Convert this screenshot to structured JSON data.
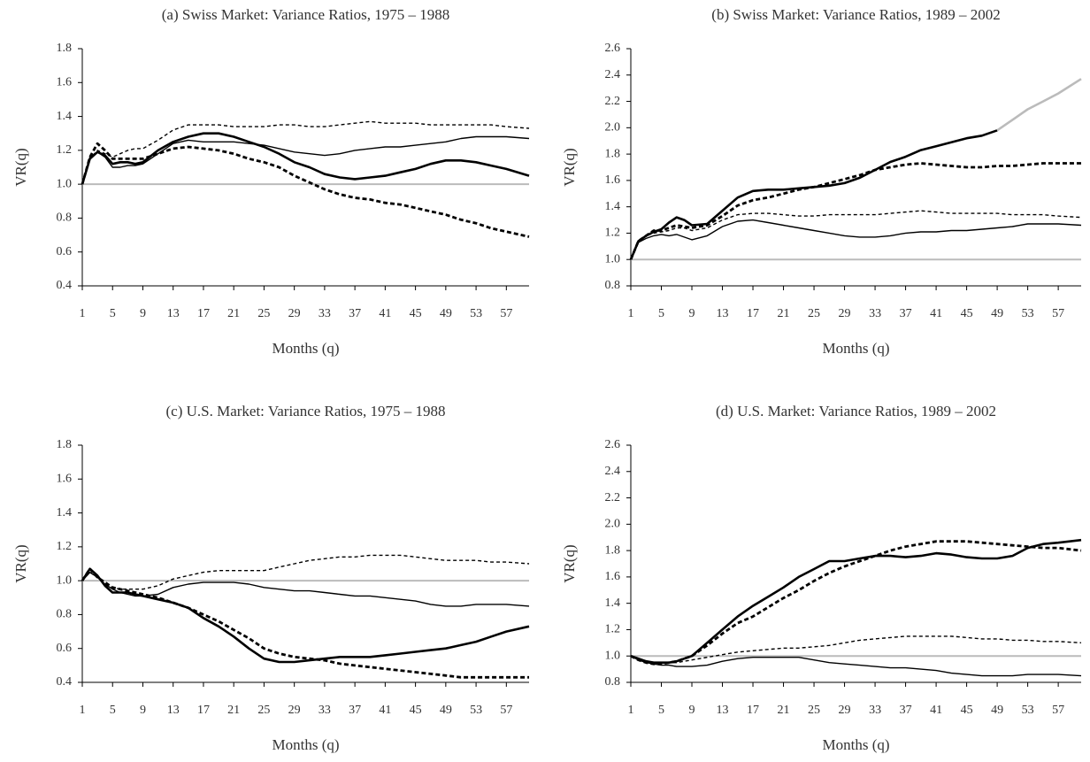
{
  "chart_data": [
    {
      "type": "line",
      "title": "(a) Swiss Market: Variance Ratios, 1975 – 1988",
      "xlabel": "Months (q)",
      "ylabel": "VR(q)",
      "x": [
        1,
        2,
        3,
        4,
        5,
        6,
        7,
        8,
        9,
        11,
        13,
        15,
        17,
        19,
        21,
        23,
        25,
        27,
        29,
        31,
        33,
        35,
        37,
        39,
        41,
        43,
        45,
        47,
        49,
        51,
        53,
        55,
        57,
        60
      ],
      "xlim": [
        1,
        60
      ],
      "xticks": [
        1,
        5,
        9,
        13,
        17,
        21,
        25,
        29,
        33,
        37,
        41,
        45,
        49,
        53,
        57
      ],
      "ylim": [
        0.4,
        1.8
      ],
      "yticks": [
        0.4,
        0.6,
        0.8,
        {
          "value": 1,
          "label": "1.0"
        },
        1.2,
        1.4,
        1.6,
        1.8
      ],
      "hline": 1,
      "hline_color": "#bbbbbb",
      "series": [
        {
          "color": "#000000",
          "line_width": 2.6,
          "line_style": "solid",
          "values": [
            1.0,
            1.15,
            1.19,
            1.17,
            1.12,
            1.13,
            1.13,
            1.12,
            1.13,
            1.2,
            1.25,
            1.28,
            1.3,
            1.3,
            1.28,
            1.25,
            1.22,
            1.18,
            1.13,
            1.1,
            1.06,
            1.04,
            1.03,
            1.04,
            1.05,
            1.07,
            1.09,
            1.12,
            1.14,
            1.14,
            1.13,
            1.11,
            1.09,
            1.05
          ]
        },
        {
          "color": "#000000",
          "line_width": 1.4,
          "line_style": "solid",
          "values": [
            1.0,
            1.16,
            1.19,
            1.16,
            1.1,
            1.1,
            1.11,
            1.11,
            1.12,
            1.18,
            1.24,
            1.26,
            1.25,
            1.25,
            1.25,
            1.24,
            1.23,
            1.21,
            1.19,
            1.18,
            1.17,
            1.18,
            1.2,
            1.21,
            1.22,
            1.22,
            1.23,
            1.24,
            1.25,
            1.27,
            1.28,
            1.28,
            1.28,
            1.27
          ]
        },
        {
          "color": "#000000",
          "line_width": 1.4,
          "line_style": "dashed",
          "values": [
            1.0,
            1.15,
            1.2,
            1.18,
            1.16,
            1.18,
            1.2,
            1.21,
            1.21,
            1.26,
            1.32,
            1.35,
            1.35,
            1.35,
            1.34,
            1.34,
            1.34,
            1.35,
            1.35,
            1.34,
            1.34,
            1.35,
            1.36,
            1.37,
            1.36,
            1.36,
            1.36,
            1.35,
            1.35,
            1.35,
            1.35,
            1.35,
            1.34,
            1.33
          ]
        },
        {
          "color": "#000000",
          "line_width": 2.8,
          "line_style": "dashed",
          "values": [
            1.0,
            1.16,
            1.24,
            1.2,
            1.15,
            1.15,
            1.15,
            1.15,
            1.15,
            1.18,
            1.21,
            1.22,
            1.21,
            1.2,
            1.18,
            1.15,
            1.13,
            1.1,
            1.05,
            1.01,
            0.97,
            0.94,
            0.92,
            0.91,
            0.89,
            0.88,
            0.86,
            0.84,
            0.82,
            0.79,
            0.77,
            0.74,
            0.72,
            0.69
          ]
        }
      ]
    },
    {
      "type": "line",
      "title": "(b) Swiss Market: Variance Ratios, 1989 – 2002",
      "xlabel": "Months (q)",
      "ylabel": "VR(q)",
      "x": [
        1,
        2,
        3,
        4,
        5,
        6,
        7,
        8,
        9,
        11,
        13,
        15,
        17,
        19,
        21,
        23,
        25,
        27,
        29,
        31,
        33,
        35,
        37,
        39,
        41,
        43,
        45,
        47,
        49,
        51,
        53,
        55,
        57,
        60
      ],
      "xlim": [
        1,
        60
      ],
      "xticks": [
        1,
        5,
        9,
        13,
        17,
        21,
        25,
        29,
        33,
        37,
        41,
        45,
        49,
        53,
        57
      ],
      "ylim": [
        0.8,
        2.6
      ],
      "yticks": [
        0.8,
        {
          "value": 1,
          "label": "1.0"
        },
        1.2,
        1.4,
        1.6,
        1.8,
        {
          "value": 2,
          "label": "2.0"
        },
        2.2,
        2.4,
        2.6
      ],
      "hline": 1,
      "hline_color": "#bbbbbb",
      "series": [
        {
          "color": "#000000",
          "line_width": 2.6,
          "line_style": "solid",
          "values": [
            1.0,
            1.14,
            1.18,
            1.21,
            1.23,
            1.28,
            1.32,
            1.3,
            1.26,
            1.27,
            1.37,
            1.47,
            1.52,
            1.53,
            1.53,
            1.54,
            1.55,
            1.56,
            1.58,
            1.62,
            1.68,
            1.74,
            1.78,
            1.83,
            1.86,
            1.89,
            1.92,
            1.94,
            1.98,
            null,
            null,
            null,
            null,
            null
          ]
        },
        {
          "color": "#bbbbbb",
          "line_width": 2.6,
          "line_style": "solid",
          "values": [
            null,
            null,
            null,
            null,
            null,
            null,
            null,
            null,
            null,
            null,
            null,
            null,
            null,
            null,
            null,
            null,
            null,
            null,
            null,
            null,
            null,
            null,
            null,
            null,
            null,
            null,
            null,
            null,
            1.98,
            2.06,
            2.14,
            2.2,
            2.26,
            2.37
          ]
        },
        {
          "color": "#000000",
          "line_width": 1.4,
          "line_style": "solid",
          "values": [
            1.0,
            1.13,
            1.16,
            1.18,
            1.19,
            1.18,
            1.19,
            1.17,
            1.15,
            1.18,
            1.25,
            1.29,
            1.3,
            1.28,
            1.26,
            1.24,
            1.22,
            1.2,
            1.18,
            1.17,
            1.17,
            1.18,
            1.2,
            1.21,
            1.21,
            1.22,
            1.22,
            1.23,
            1.24,
            1.25,
            1.27,
            1.27,
            1.27,
            1.26
          ]
        },
        {
          "color": "#000000",
          "line_width": 1.4,
          "line_style": "dashed",
          "values": [
            1.0,
            1.14,
            1.18,
            1.2,
            1.21,
            1.22,
            1.24,
            1.24,
            1.22,
            1.24,
            1.3,
            1.34,
            1.35,
            1.35,
            1.34,
            1.33,
            1.33,
            1.34,
            1.34,
            1.34,
            1.34,
            1.35,
            1.36,
            1.37,
            1.36,
            1.35,
            1.35,
            1.35,
            1.35,
            1.34,
            1.34,
            1.34,
            1.33,
            1.32
          ]
        },
        {
          "color": "#000000",
          "line_width": 2.8,
          "line_style": "dashed",
          "values": [
            1.0,
            1.14,
            1.18,
            1.22,
            1.22,
            1.24,
            1.26,
            1.25,
            1.24,
            1.26,
            1.33,
            1.41,
            1.45,
            1.47,
            1.5,
            1.53,
            1.55,
            1.58,
            1.61,
            1.64,
            1.68,
            1.7,
            1.72,
            1.73,
            1.72,
            1.71,
            1.7,
            1.7,
            1.71,
            1.71,
            1.72,
            1.73,
            1.73,
            1.73
          ]
        }
      ]
    },
    {
      "type": "line",
      "title": "(c) U.S. Market: Variance Ratios, 1975 – 1988",
      "xlabel": "Months (q)",
      "ylabel": "VR(q)",
      "x": [
        1,
        2,
        3,
        4,
        5,
        6,
        7,
        8,
        9,
        11,
        13,
        15,
        17,
        19,
        21,
        23,
        25,
        27,
        29,
        31,
        33,
        35,
        37,
        39,
        41,
        43,
        45,
        47,
        49,
        51,
        53,
        55,
        57,
        60
      ],
      "xlim": [
        1,
        60
      ],
      "xticks": [
        1,
        5,
        9,
        13,
        17,
        21,
        25,
        29,
        33,
        37,
        41,
        45,
        49,
        53,
        57
      ],
      "ylim": [
        0.4,
        1.8
      ],
      "yticks": [
        0.4,
        0.6,
        0.8,
        {
          "value": 1,
          "label": "1.0"
        },
        1.2,
        1.4,
        1.6,
        1.8
      ],
      "hline": 1,
      "hline_color": "#bbbbbb",
      "series": [
        {
          "color": "#000000",
          "line_width": 2.6,
          "line_style": "solid",
          "values": [
            1.0,
            1.07,
            1.03,
            0.97,
            0.93,
            0.93,
            0.93,
            0.92,
            0.91,
            0.89,
            0.87,
            0.84,
            0.78,
            0.73,
            0.67,
            0.6,
            0.54,
            0.52,
            0.52,
            0.53,
            0.54,
            0.55,
            0.55,
            0.55,
            0.56,
            0.57,
            0.58,
            0.59,
            0.6,
            0.62,
            0.64,
            0.67,
            0.7,
            0.73
          ]
        },
        {
          "color": "#000000",
          "line_width": 1.4,
          "line_style": "solid",
          "values": [
            1.0,
            1.05,
            1.02,
            0.98,
            0.95,
            0.93,
            0.92,
            0.91,
            0.91,
            0.92,
            0.96,
            0.98,
            0.99,
            0.99,
            0.99,
            0.98,
            0.96,
            0.95,
            0.94,
            0.94,
            0.93,
            0.92,
            0.91,
            0.91,
            0.9,
            0.89,
            0.88,
            0.86,
            0.85,
            0.85,
            0.86,
            0.86,
            0.86,
            0.85
          ]
        },
        {
          "color": "#000000",
          "line_width": 1.4,
          "line_style": "dashed",
          "values": [
            1.0,
            1.05,
            1.02,
            0.98,
            0.96,
            0.95,
            0.95,
            0.95,
            0.95,
            0.97,
            1.01,
            1.03,
            1.05,
            1.06,
            1.06,
            1.06,
            1.06,
            1.08,
            1.1,
            1.12,
            1.13,
            1.14,
            1.14,
            1.15,
            1.15,
            1.15,
            1.14,
            1.13,
            1.12,
            1.12,
            1.12,
            1.11,
            1.11,
            1.1
          ]
        },
        {
          "color": "#000000",
          "line_width": 2.8,
          "line_style": "dashed",
          "values": [
            1.0,
            1.07,
            1.02,
            0.99,
            0.96,
            0.95,
            0.94,
            0.93,
            0.92,
            0.9,
            0.87,
            0.84,
            0.8,
            0.76,
            0.71,
            0.66,
            0.6,
            0.57,
            0.55,
            0.54,
            0.53,
            0.51,
            0.5,
            0.49,
            0.48,
            0.47,
            0.46,
            0.45,
            0.44,
            0.43,
            0.43,
            0.43,
            0.43,
            0.43
          ]
        }
      ]
    },
    {
      "type": "line",
      "title": "(d) U.S. Market: Variance Ratios, 1989 – 2002",
      "xlabel": "Months (q)",
      "ylabel": "VR(q)",
      "x": [
        1,
        2,
        3,
        4,
        5,
        6,
        7,
        8,
        9,
        11,
        13,
        15,
        17,
        19,
        21,
        23,
        25,
        27,
        29,
        31,
        33,
        35,
        37,
        39,
        41,
        43,
        45,
        47,
        49,
        51,
        53,
        55,
        57,
        60
      ],
      "xlim": [
        1,
        60
      ],
      "xticks": [
        1,
        5,
        9,
        13,
        17,
        21,
        25,
        29,
        33,
        37,
        41,
        45,
        49,
        53,
        57
      ],
      "ylim": [
        0.8,
        2.6
      ],
      "yticks": [
        0.8,
        {
          "value": 1,
          "label": "1.0"
        },
        1.2,
        1.4,
        1.6,
        1.8,
        {
          "value": 2,
          "label": "2.0"
        },
        2.2,
        2.4,
        2.6
      ],
      "hline": 1,
      "hline_color": "#bbbbbb",
      "series": [
        {
          "color": "#000000",
          "line_width": 2.6,
          "line_style": "solid",
          "values": [
            1.0,
            0.98,
            0.96,
            0.95,
            0.95,
            0.95,
            0.96,
            0.98,
            1.0,
            1.1,
            1.2,
            1.3,
            1.38,
            1.45,
            1.52,
            1.6,
            1.66,
            1.72,
            1.72,
            1.74,
            1.76,
            1.76,
            1.75,
            1.76,
            1.78,
            1.77,
            1.75,
            1.74,
            1.74,
            1.76,
            1.82,
            1.85,
            1.86,
            1.88
          ]
        },
        {
          "color": "#000000",
          "line_width": 1.4,
          "line_style": "solid",
          "values": [
            1.0,
            0.97,
            0.95,
            0.94,
            0.93,
            0.93,
            0.92,
            0.92,
            0.92,
            0.93,
            0.96,
            0.98,
            0.99,
            0.99,
            0.99,
            0.99,
            0.97,
            0.95,
            0.94,
            0.93,
            0.92,
            0.91,
            0.91,
            0.9,
            0.89,
            0.87,
            0.86,
            0.85,
            0.85,
            0.85,
            0.86,
            0.86,
            0.86,
            0.85
          ]
        },
        {
          "color": "#000000",
          "line_width": 1.4,
          "line_style": "dashed",
          "values": [
            1.0,
            0.98,
            0.96,
            0.95,
            0.95,
            0.95,
            0.95,
            0.96,
            0.97,
            0.99,
            1.01,
            1.03,
            1.04,
            1.05,
            1.06,
            1.06,
            1.07,
            1.08,
            1.1,
            1.12,
            1.13,
            1.14,
            1.15,
            1.15,
            1.15,
            1.15,
            1.14,
            1.13,
            1.13,
            1.12,
            1.12,
            1.11,
            1.11,
            1.1
          ]
        },
        {
          "color": "#000000",
          "line_width": 2.8,
          "line_style": "dashed",
          "values": [
            1.0,
            0.97,
            0.95,
            0.94,
            0.94,
            0.95,
            0.96,
            0.98,
            1.0,
            1.08,
            1.17,
            1.25,
            1.3,
            1.37,
            1.44,
            1.5,
            1.57,
            1.63,
            1.68,
            1.72,
            1.76,
            1.8,
            1.83,
            1.85,
            1.87,
            1.87,
            1.87,
            1.86,
            1.85,
            1.84,
            1.83,
            1.82,
            1.82,
            1.8
          ]
        }
      ]
    }
  ]
}
